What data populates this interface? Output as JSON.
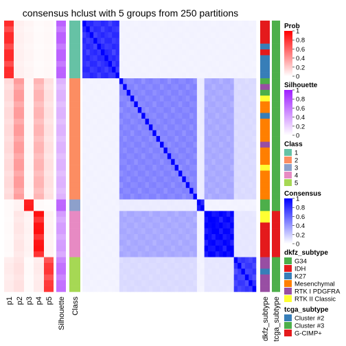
{
  "chart_data": {
    "type": "heatmap",
    "title": "consensus hclust with 5 groups from 250 partitions",
    "column_labels": [
      "p1",
      "p2",
      "p3",
      "p4",
      "p5",
      "Silhouette",
      "Class",
      "dkfz_subtype",
      "tcga_subtype"
    ],
    "group_sizes": [
      10,
      21,
      2,
      8,
      6
    ],
    "group_rows": [
      {
        "class": 1,
        "p": [
          0.85,
          0.06,
          0.04,
          0.02,
          0.03
        ],
        "silhouette": 0.72
      },
      {
        "class": 2,
        "p": [
          0.15,
          0.4,
          0.03,
          0.3,
          0.12
        ],
        "silhouette": 0.35
      },
      {
        "class": 3,
        "p": [
          0.02,
          0.05,
          0.9,
          0.02,
          0.01
        ],
        "silhouette": 0.7
      },
      {
        "class": 4,
        "p": [
          0.02,
          0.1,
          0.05,
          0.95,
          0.05
        ],
        "silhouette": 0.45
      },
      {
        "class": 5,
        "p": [
          0.08,
          0.12,
          0.02,
          0.08,
          0.8
        ],
        "silhouette": 0.65
      }
    ],
    "consensus_within": [
      0.85,
      0.5,
      0.95,
      1.0,
      0.8
    ],
    "consensus_between": [
      [
        0.85,
        0.05,
        0.05,
        0.05,
        0.05
      ],
      [
        0.05,
        0.5,
        0.08,
        0.35,
        0.15
      ],
      [
        0.05,
        0.08,
        0.95,
        0.05,
        0.05
      ],
      [
        0.05,
        0.35,
        0.05,
        1.0,
        0.1
      ],
      [
        0.05,
        0.15,
        0.05,
        0.1,
        0.8
      ]
    ],
    "row_dkfz_subtype": [
      "IDH",
      "IDH",
      "IDH",
      "IDH",
      "K27",
      "IDH",
      "K27",
      "K27",
      "K27",
      "K27",
      "G34",
      "RTK I PDGFRA",
      "G34",
      "RTK II Classic",
      "Mesenchymal",
      "Mesenchymal",
      "K27",
      "Mesenchymal",
      "Mesenchymal",
      "Mesenchymal",
      "Mesenchymal",
      "RTK I PDGFRA",
      "Mesenchymal",
      "Mesenchymal",
      "Mesenchymal",
      "RTK II Classic",
      "Mesenchymal",
      "Mesenchymal",
      "Mesenchymal",
      "Mesenchymal",
      "Mesenchymal",
      "G34",
      "G34",
      "RTK II Classic",
      "RTK II Classic",
      "IDH",
      "IDH",
      "IDH",
      "IDH",
      "IDH",
      "IDH",
      "RTK I PDGFRA",
      "RTK I PDGFRA",
      "K27",
      "RTK I PDGFRA",
      "RTK I PDGFRA",
      "RTK I PDGFRA"
    ],
    "row_tcga_subtype": [
      "Cluster #3",
      "Cluster #3",
      "Cluster #3",
      "Cluster #3",
      "Cluster #3",
      "Cluster #3",
      "Cluster #3",
      "Cluster #3",
      "Cluster #3",
      "Cluster #3",
      "Cluster #3",
      "Cluster #3",
      "Cluster #3",
      "Cluster #3",
      "Cluster #3",
      "Cluster #3",
      "Cluster #3",
      "Cluster #3",
      "Cluster #3",
      "Cluster #3",
      "Cluster #3",
      "Cluster #3",
      "Cluster #3",
      "Cluster #3",
      "Cluster #3",
      "Cluster #3",
      "Cluster #3",
      "Cluster #3",
      "Cluster #3",
      "Cluster #3",
      "Cluster #3",
      "Cluster #3",
      "Cluster #3",
      "G-CIMP+",
      "G-CIMP+",
      "G-CIMP+",
      "G-CIMP+",
      "G-CIMP+",
      "G-CIMP+",
      "G-CIMP+",
      "G-CIMP+",
      "Cluster #3",
      "Cluster #3",
      "Cluster #3",
      "Cluster #3",
      "Cluster #3",
      "Cluster #3"
    ],
    "legends": [
      {
        "title": "Prob",
        "type": "continuous",
        "ticks": [
          "1",
          "0.8",
          "0.6",
          "0.4",
          "0.2",
          "0"
        ],
        "low": "#ffffff",
        "high": "#ff0000"
      },
      {
        "title": "Silhouette",
        "type": "continuous",
        "ticks": [
          "1",
          "0.8",
          "0.6",
          "0.4",
          "0.2",
          "0"
        ],
        "low": "#ffffff",
        "high": "#9f1fff"
      },
      {
        "title": "Class",
        "type": "discrete",
        "items": [
          {
            "label": "1",
            "color": "#66c2a5"
          },
          {
            "label": "2",
            "color": "#fc8d62"
          },
          {
            "label": "3",
            "color": "#8da0cb"
          },
          {
            "label": "4",
            "color": "#e78ac3"
          },
          {
            "label": "5",
            "color": "#a6d854"
          }
        ]
      },
      {
        "title": "Consensus",
        "type": "continuous",
        "ticks": [
          "1",
          "0.8",
          "0.6",
          "0.4",
          "0.2",
          "0"
        ],
        "low": "#ffffff",
        "high": "#0000ff"
      },
      {
        "title": "dkfz_subtype",
        "type": "discrete",
        "items": [
          {
            "label": "G34",
            "color": "#4daf4a"
          },
          {
            "label": "IDH",
            "color": "#e41a1c"
          },
          {
            "label": "K27",
            "color": "#377eb8"
          },
          {
            "label": "Mesenchymal",
            "color": "#ff7f00"
          },
          {
            "label": "RTK I PDGFRA",
            "color": "#984ea3"
          },
          {
            "label": "RTK II Classic",
            "color": "#ffff33"
          }
        ]
      },
      {
        "title": "tcga_subtype",
        "type": "discrete",
        "items": [
          {
            "label": "Cluster #2",
            "color": "#377eb8"
          },
          {
            "label": "Cluster #3",
            "color": "#4daf4a"
          },
          {
            "label": "G-CIMP+",
            "color": "#e41a1c"
          }
        ]
      }
    ]
  }
}
